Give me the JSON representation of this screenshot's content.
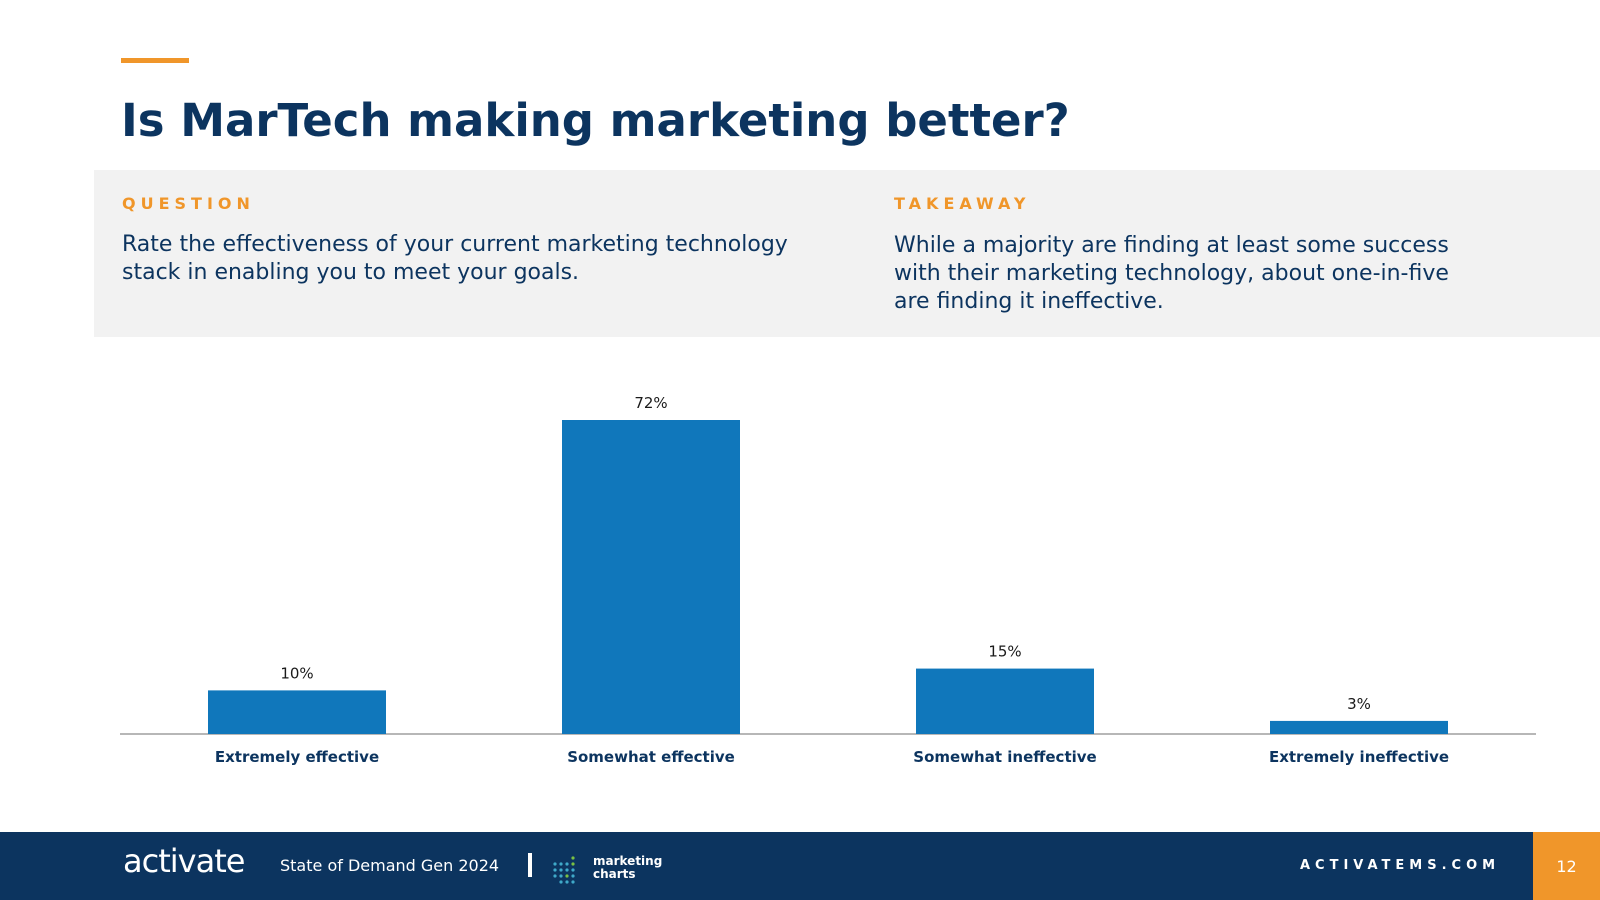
{
  "header": {
    "title": "Is MarTech making marketing better?"
  },
  "panel": {
    "question_label": "QUESTION",
    "question_text": "Rate the effectiveness of your current marketing technology stack in enabling you to meet your goals.",
    "takeaway_label": "TAKEAWAY",
    "takeaway_text": "While a majority are finding at least some success with their marketing technology, about one-in-five are finding it ineffective."
  },
  "chart_data": {
    "type": "bar",
    "categories": [
      "Extremely effective",
      "Somewhat effective",
      "Somewhat ineffective",
      "Extremely ineffective"
    ],
    "values": [
      10,
      72,
      15,
      3
    ],
    "data_labels": [
      "10%",
      "72%",
      "15%",
      "3%"
    ],
    "title": "",
    "xlabel": "",
    "ylabel": "",
    "ylim": [
      0,
      72
    ],
    "grid": false,
    "color": "#1077bb"
  },
  "footer": {
    "logo": "activate",
    "report": "State of Demand Gen 2024",
    "partner_line1": "marketing",
    "partner_line2": "charts",
    "site": "ACTIVATEMS.COM",
    "page_number": "12"
  },
  "colors": {
    "accent": "#f0962a",
    "navy": "#0c345f",
    "bar": "#1077bb",
    "panel": "#f2f2f2"
  }
}
